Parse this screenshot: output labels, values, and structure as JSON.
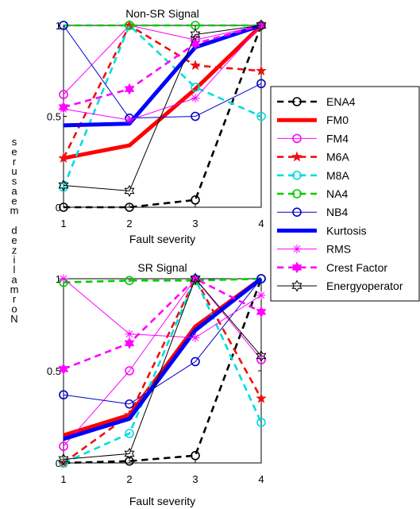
{
  "ylabel": "Normalized measures",
  "chart_data": [
    {
      "type": "line",
      "title": "Non-SR Signal",
      "xlabel": "Fault severity",
      "x": [
        1,
        2,
        3,
        4
      ],
      "xlim": [
        1,
        4
      ],
      "ylim": [
        0,
        1
      ],
      "xticks": [
        "1",
        "2",
        "3",
        "4"
      ],
      "yticks": [
        "0",
        "0.5",
        "1"
      ],
      "grid": false,
      "series": [
        {
          "name": "ENA4",
          "values": [
            0.0,
            0.0,
            0.04,
            1.0
          ]
        },
        {
          "name": "FM0",
          "values": [
            0.27,
            0.34,
            0.65,
            1.0
          ]
        },
        {
          "name": "FM4",
          "values": [
            0.62,
            1.0,
            0.92,
            1.0
          ]
        },
        {
          "name": "M6A",
          "values": [
            0.27,
            1.0,
            0.78,
            0.75
          ]
        },
        {
          "name": "M8A",
          "values": [
            0.11,
            1.0,
            0.66,
            0.5
          ]
        },
        {
          "name": "NA4",
          "values": [
            1.0,
            1.0,
            1.0,
            1.0
          ]
        },
        {
          "name": "NB4",
          "values": [
            1.0,
            0.49,
            0.5,
            0.68
          ]
        },
        {
          "name": "Kurtosis",
          "values": [
            0.45,
            0.46,
            0.88,
            1.0
          ]
        },
        {
          "name": "RMS",
          "values": [
            0.54,
            0.48,
            0.6,
            1.0
          ]
        },
        {
          "name": "Crest Factor",
          "values": [
            0.55,
            0.65,
            0.9,
            1.0
          ]
        },
        {
          "name": "Energyoperator",
          "values": [
            0.12,
            0.09,
            0.95,
            1.0
          ]
        }
      ]
    },
    {
      "type": "line",
      "title": "SR Signal",
      "xlabel": "Fault severity",
      "x": [
        1,
        2,
        3,
        4
      ],
      "xlim": [
        1,
        4
      ],
      "ylim": [
        0,
        1
      ],
      "xticks": [
        "1",
        "2",
        "3",
        "4"
      ],
      "yticks": [
        "0",
        "0.5",
        "1"
      ],
      "grid": false,
      "series": [
        {
          "name": "ENA4",
          "values": [
            0.0,
            0.01,
            0.04,
            1.0
          ]
        },
        {
          "name": "FM0",
          "values": [
            0.15,
            0.26,
            0.74,
            1.0
          ]
        },
        {
          "name": "FM4",
          "values": [
            0.09,
            0.5,
            1.0,
            0.56
          ]
        },
        {
          "name": "M6A",
          "values": [
            0.0,
            0.26,
            1.0,
            0.35
          ]
        },
        {
          "name": "M8A",
          "values": [
            0.0,
            0.16,
            1.0,
            0.22
          ]
        },
        {
          "name": "NA4",
          "values": [
            0.98,
            0.99,
            0.99,
            1.0
          ]
        },
        {
          "name": "NB4",
          "values": [
            0.37,
            0.32,
            0.55,
            1.0
          ]
        },
        {
          "name": "Kurtosis",
          "values": [
            0.13,
            0.24,
            0.72,
            1.0
          ]
        },
        {
          "name": "RMS",
          "values": [
            1.0,
            0.7,
            0.68,
            0.91
          ]
        },
        {
          "name": "Crest Factor",
          "values": [
            0.51,
            0.65,
            1.0,
            0.82
          ]
        },
        {
          "name": "Energyoperator",
          "values": [
            0.02,
            0.05,
            1.0,
            0.58
          ]
        }
      ]
    }
  ],
  "styles": [
    {
      "name": "ENA4",
      "color": "#000000",
      "dash": "dashed",
      "width": "thick",
      "marker": "circle"
    },
    {
      "name": "FM0",
      "color": "#ff0000",
      "dash": "solid",
      "width": "heavy",
      "marker": "none"
    },
    {
      "name": "FM4",
      "color": "#ff00ff",
      "dash": "solid",
      "width": "thin",
      "marker": "circle"
    },
    {
      "name": "M6A",
      "color": "#ee1111",
      "dash": "dashed",
      "width": "thick",
      "marker": "star"
    },
    {
      "name": "M8A",
      "color": "#00dddd",
      "dash": "dashed",
      "width": "thick",
      "marker": "circle"
    },
    {
      "name": "NA4",
      "color": "#00cc00",
      "dash": "dashed",
      "width": "thick",
      "marker": "circle"
    },
    {
      "name": "NB4",
      "color": "#0000cc",
      "dash": "solid",
      "width": "thin",
      "marker": "circle"
    },
    {
      "name": "Kurtosis",
      "color": "#0000ff",
      "dash": "solid",
      "width": "heavy",
      "marker": "none"
    },
    {
      "name": "RMS",
      "color": "#ff00ff",
      "dash": "solid",
      "width": "thin",
      "marker": "asterisk"
    },
    {
      "name": "Crest Factor",
      "color": "#ff00ff",
      "dash": "dashed",
      "width": "thick",
      "marker": "hexagram"
    },
    {
      "name": "Energyoperator",
      "color": "#000000",
      "dash": "solid",
      "width": "thin",
      "marker": "hexagram"
    }
  ]
}
